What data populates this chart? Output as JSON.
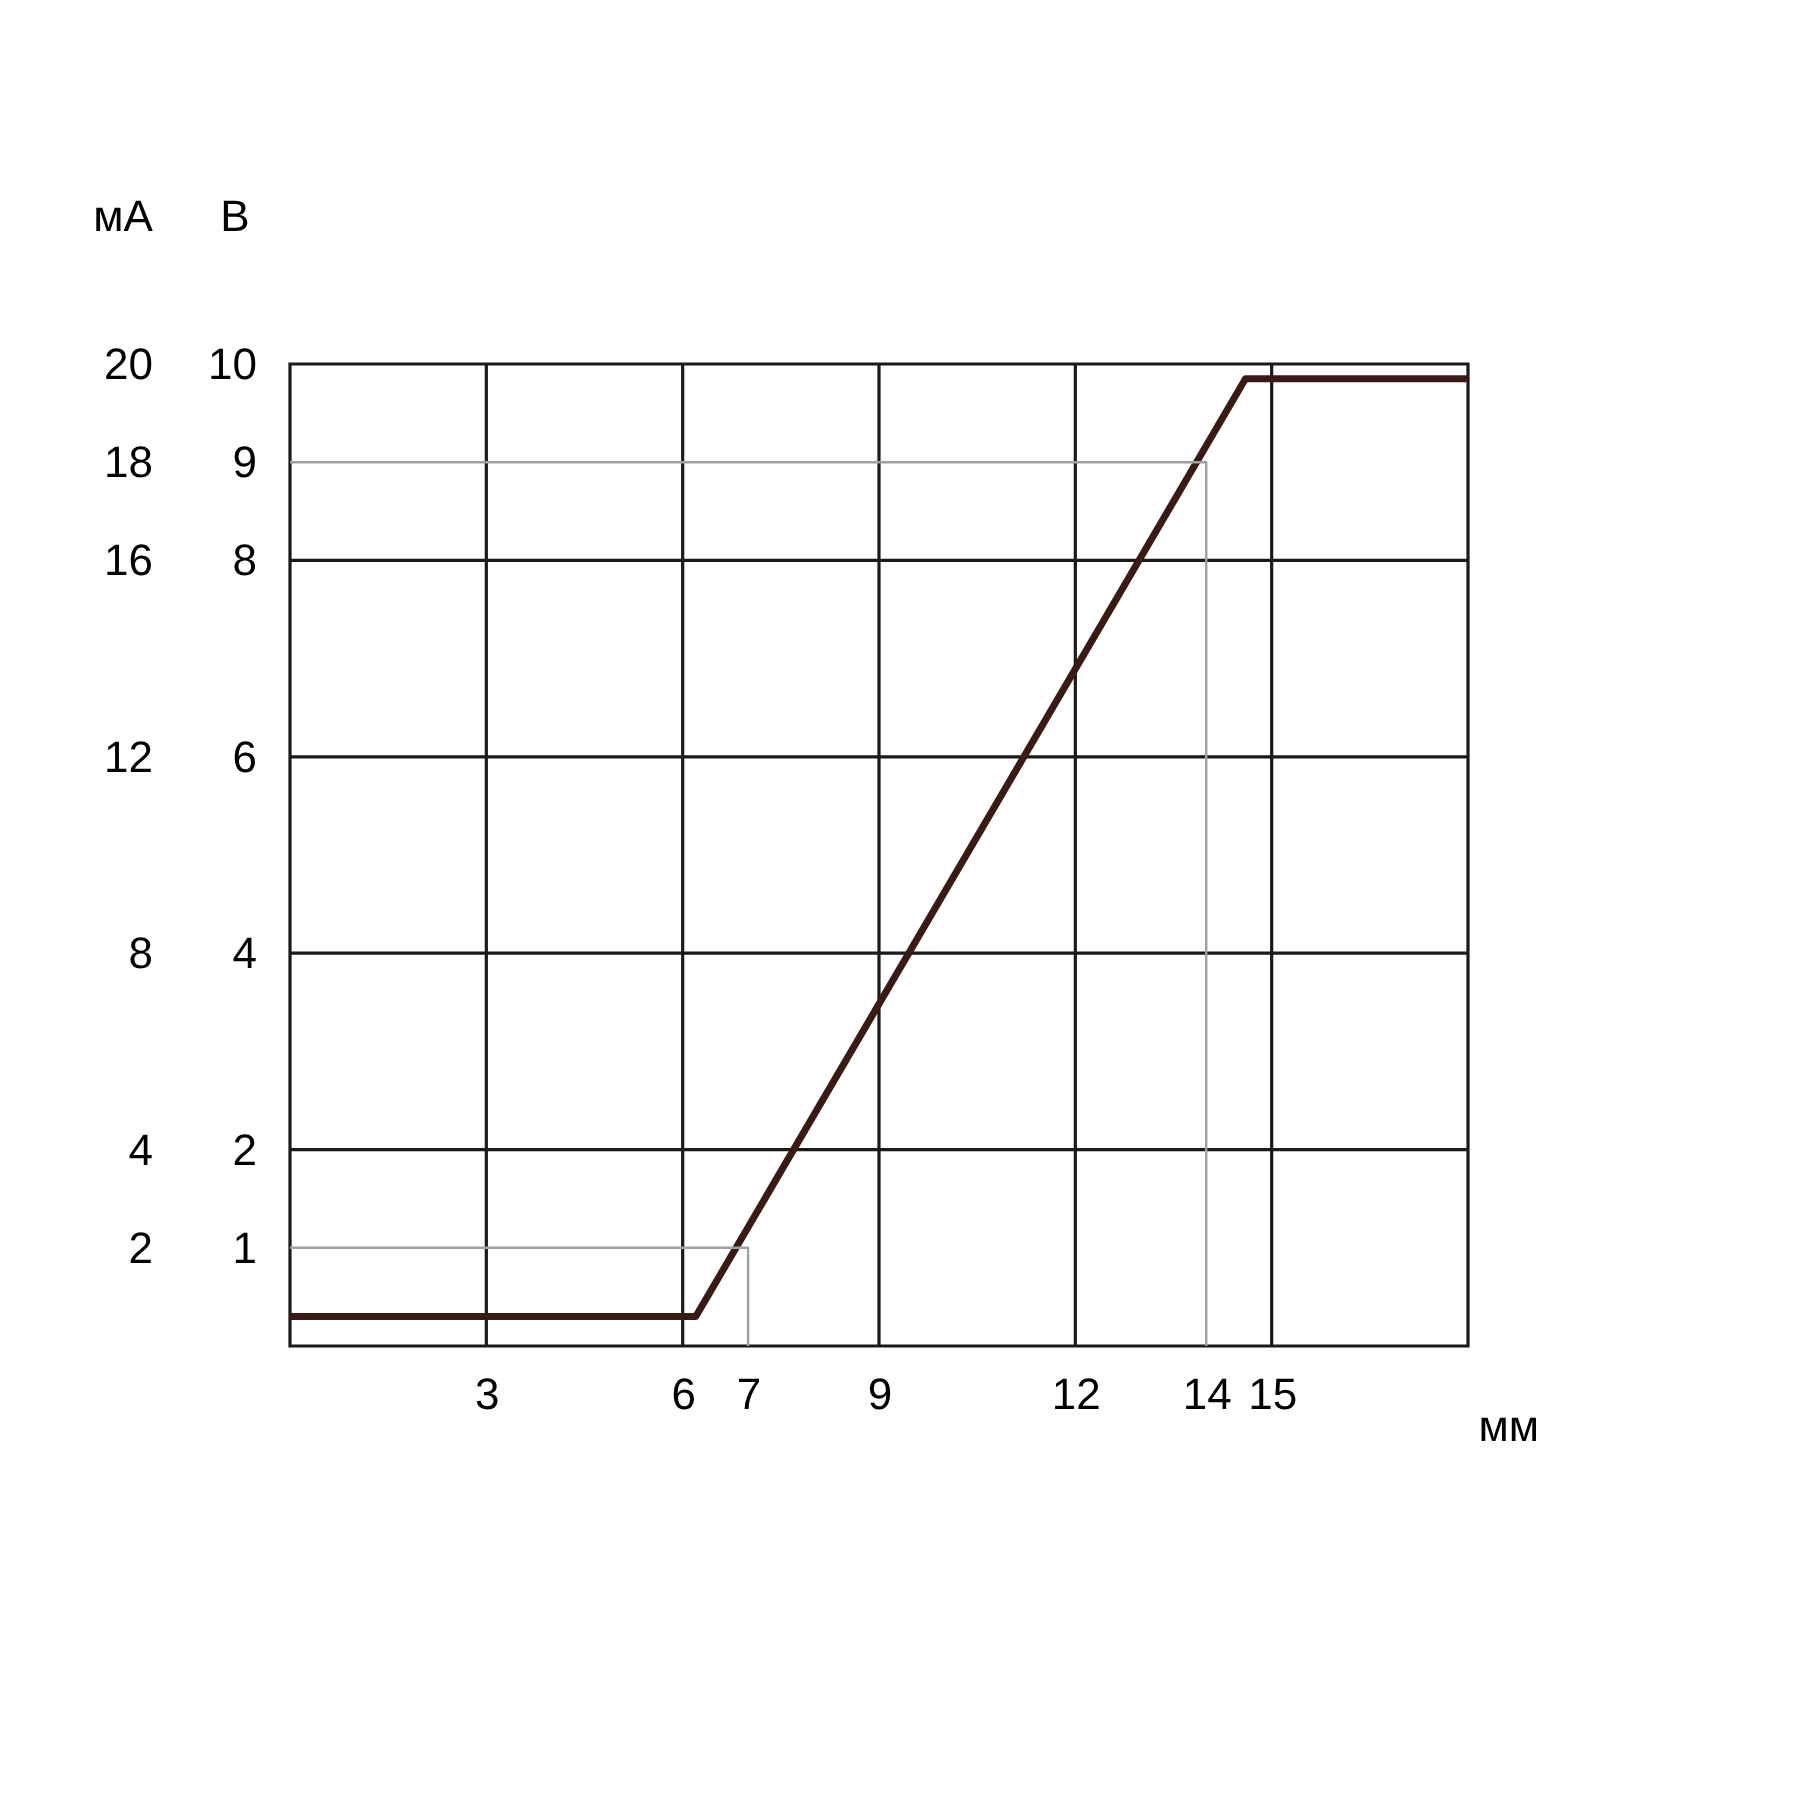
{
  "chart_data": {
    "type": "line",
    "xlabel": "мм",
    "ylabel": "В",
    "y2label": "мА",
    "xlim": [
      0,
      18
    ],
    "xticks": [
      3,
      6,
      7,
      9,
      12,
      14,
      15
    ],
    "ylim": [
      0,
      10
    ],
    "yticks": [
      1,
      2,
      4,
      6,
      8,
      9,
      10
    ],
    "y2lim": [
      0,
      20
    ],
    "y2ticks": [
      2,
      4,
      8,
      12,
      16,
      18,
      20
    ],
    "grid": false,
    "marker": "none",
    "line_style": "solid",
    "series": [
      {
        "color": "#3a1a14",
        "x": [
          0,
          6.2,
          14.6,
          18
        ],
        "values": [
          0.3,
          0.3,
          9.85,
          9.85
        ]
      },
      {
        "color": "#a0a0a0",
        "x": [
          0,
          7,
          7
        ],
        "values": [
          1,
          1,
          0
        ]
      },
      {
        "color": "#a0a0a0",
        "x": [
          0,
          14,
          14
        ],
        "values": [
          9,
          9,
          0
        ]
      }
    ],
    "ref_lines": [
      {
        "axis": "x",
        "value": 3,
        "color": "#1a1a1a"
      },
      {
        "axis": "x",
        "value": 6,
        "color": "#1a1a1a"
      },
      {
        "axis": "x",
        "value": 9,
        "color": "#1a1a1a"
      },
      {
        "axis": "x",
        "value": 12,
        "color": "#1a1a1a"
      },
      {
        "axis": "x",
        "value": 15,
        "color": "#1a1a1a"
      },
      {
        "axis": "y",
        "value": 2,
        "color": "#1a1a1a"
      },
      {
        "axis": "y",
        "value": 4,
        "color": "#1a1a1a"
      },
      {
        "axis": "y",
        "value": 6,
        "color": "#1a1a1a"
      },
      {
        "axis": "y",
        "value": 8,
        "color": "#1a1a1a"
      }
    ]
  }
}
